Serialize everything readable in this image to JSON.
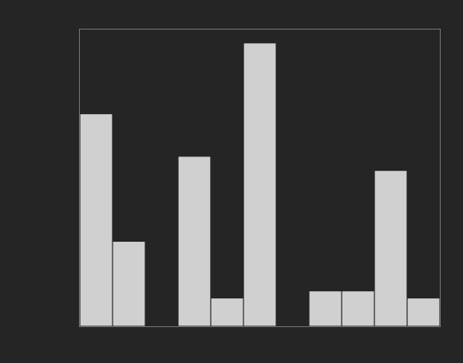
{
  "chart_data": {
    "type": "bar",
    "values": [
      30,
      12,
      0,
      24,
      4,
      40,
      0,
      5,
      5,
      22,
      4
    ],
    "color": "#d0d0d0",
    "ylim": [
      0,
      42
    ],
    "tick_labels": false
  }
}
